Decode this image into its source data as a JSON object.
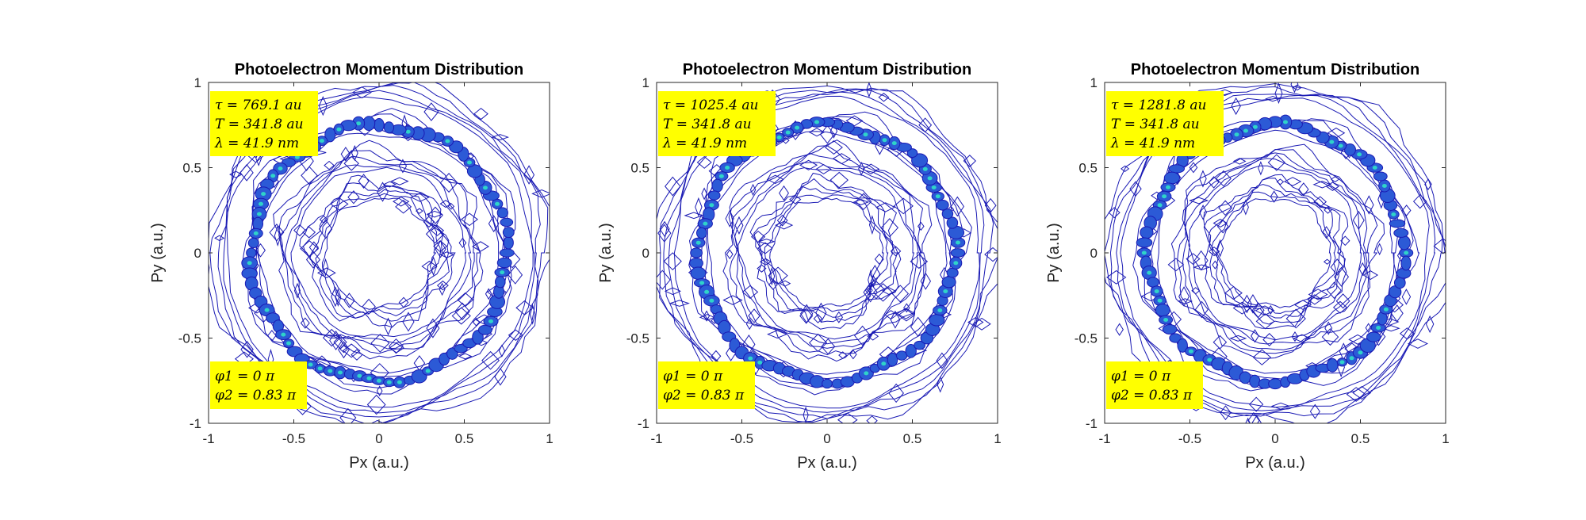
{
  "chart_data": [
    {
      "type": "contour",
      "title": "Photoelectron Momentum Distribution",
      "xlabel": "Px (a.u.)",
      "ylabel": "Py (a.u.)",
      "xlim": [
        -1,
        1
      ],
      "ylim": [
        -1,
        1
      ],
      "xticks": [
        "-1",
        "-0.5",
        "0",
        "0.5",
        "1"
      ],
      "yticks": [
        "1",
        "0.5",
        "0",
        "-0.5",
        "-1"
      ],
      "ring_radii": [
        0.37,
        0.55,
        0.75,
        0.95
      ],
      "annotation_top": [
        "τ = 769.1 au",
        "T = 341.8 au",
        "λ = 41.9 nm"
      ],
      "annotation_bottom": [
        "φ1 = 0 π",
        "φ2 = 0.83 π"
      ],
      "grid": false
    },
    {
      "type": "contour",
      "title": "Photoelectron Momentum Distribution",
      "xlabel": "Px (a.u.)",
      "ylabel": "Py (a.u.)",
      "xlim": [
        -1,
        1
      ],
      "ylim": [
        -1,
        1
      ],
      "xticks": [
        "-1",
        "-0.5",
        "0",
        "0.5",
        "1"
      ],
      "yticks": [
        "1",
        "0.5",
        "0",
        "-0.5",
        "-1"
      ],
      "ring_radii": [
        0.37,
        0.55,
        0.75,
        0.95
      ],
      "annotation_top": [
        "τ = 1025.4 au",
        "T = 341.8 au",
        "λ = 41.9 nm"
      ],
      "annotation_bottom": [
        "φ1 = 0 π",
        "φ2 = 0.83 π"
      ],
      "grid": false
    },
    {
      "type": "contour",
      "title": "Photoelectron Momentum Distribution",
      "xlabel": "Px (a.u.)",
      "ylabel": "Py (a.u.)",
      "xlim": [
        -1,
        1
      ],
      "ylim": [
        -1,
        1
      ],
      "xticks": [
        "-1",
        "-0.5",
        "0",
        "0.5",
        "1"
      ],
      "yticks": [
        "1",
        "0.5",
        "0",
        "-0.5",
        "-1"
      ],
      "ring_radii": [
        0.37,
        0.55,
        0.75,
        0.95
      ],
      "annotation_top": [
        "τ = 1281.8 au",
        "T = 341.8 au",
        "λ = 41.9 nm"
      ],
      "annotation_bottom": [
        "φ1 = 0 π",
        "φ2 = 0.83 π"
      ],
      "grid": false
    }
  ],
  "colors": {
    "contour_line": "#1a1ab4",
    "ring_fill": "#2c5ad6",
    "ring_hot": "#2fd3c9",
    "annotation_bg": "#ffff00",
    "axes": "#262626"
  }
}
